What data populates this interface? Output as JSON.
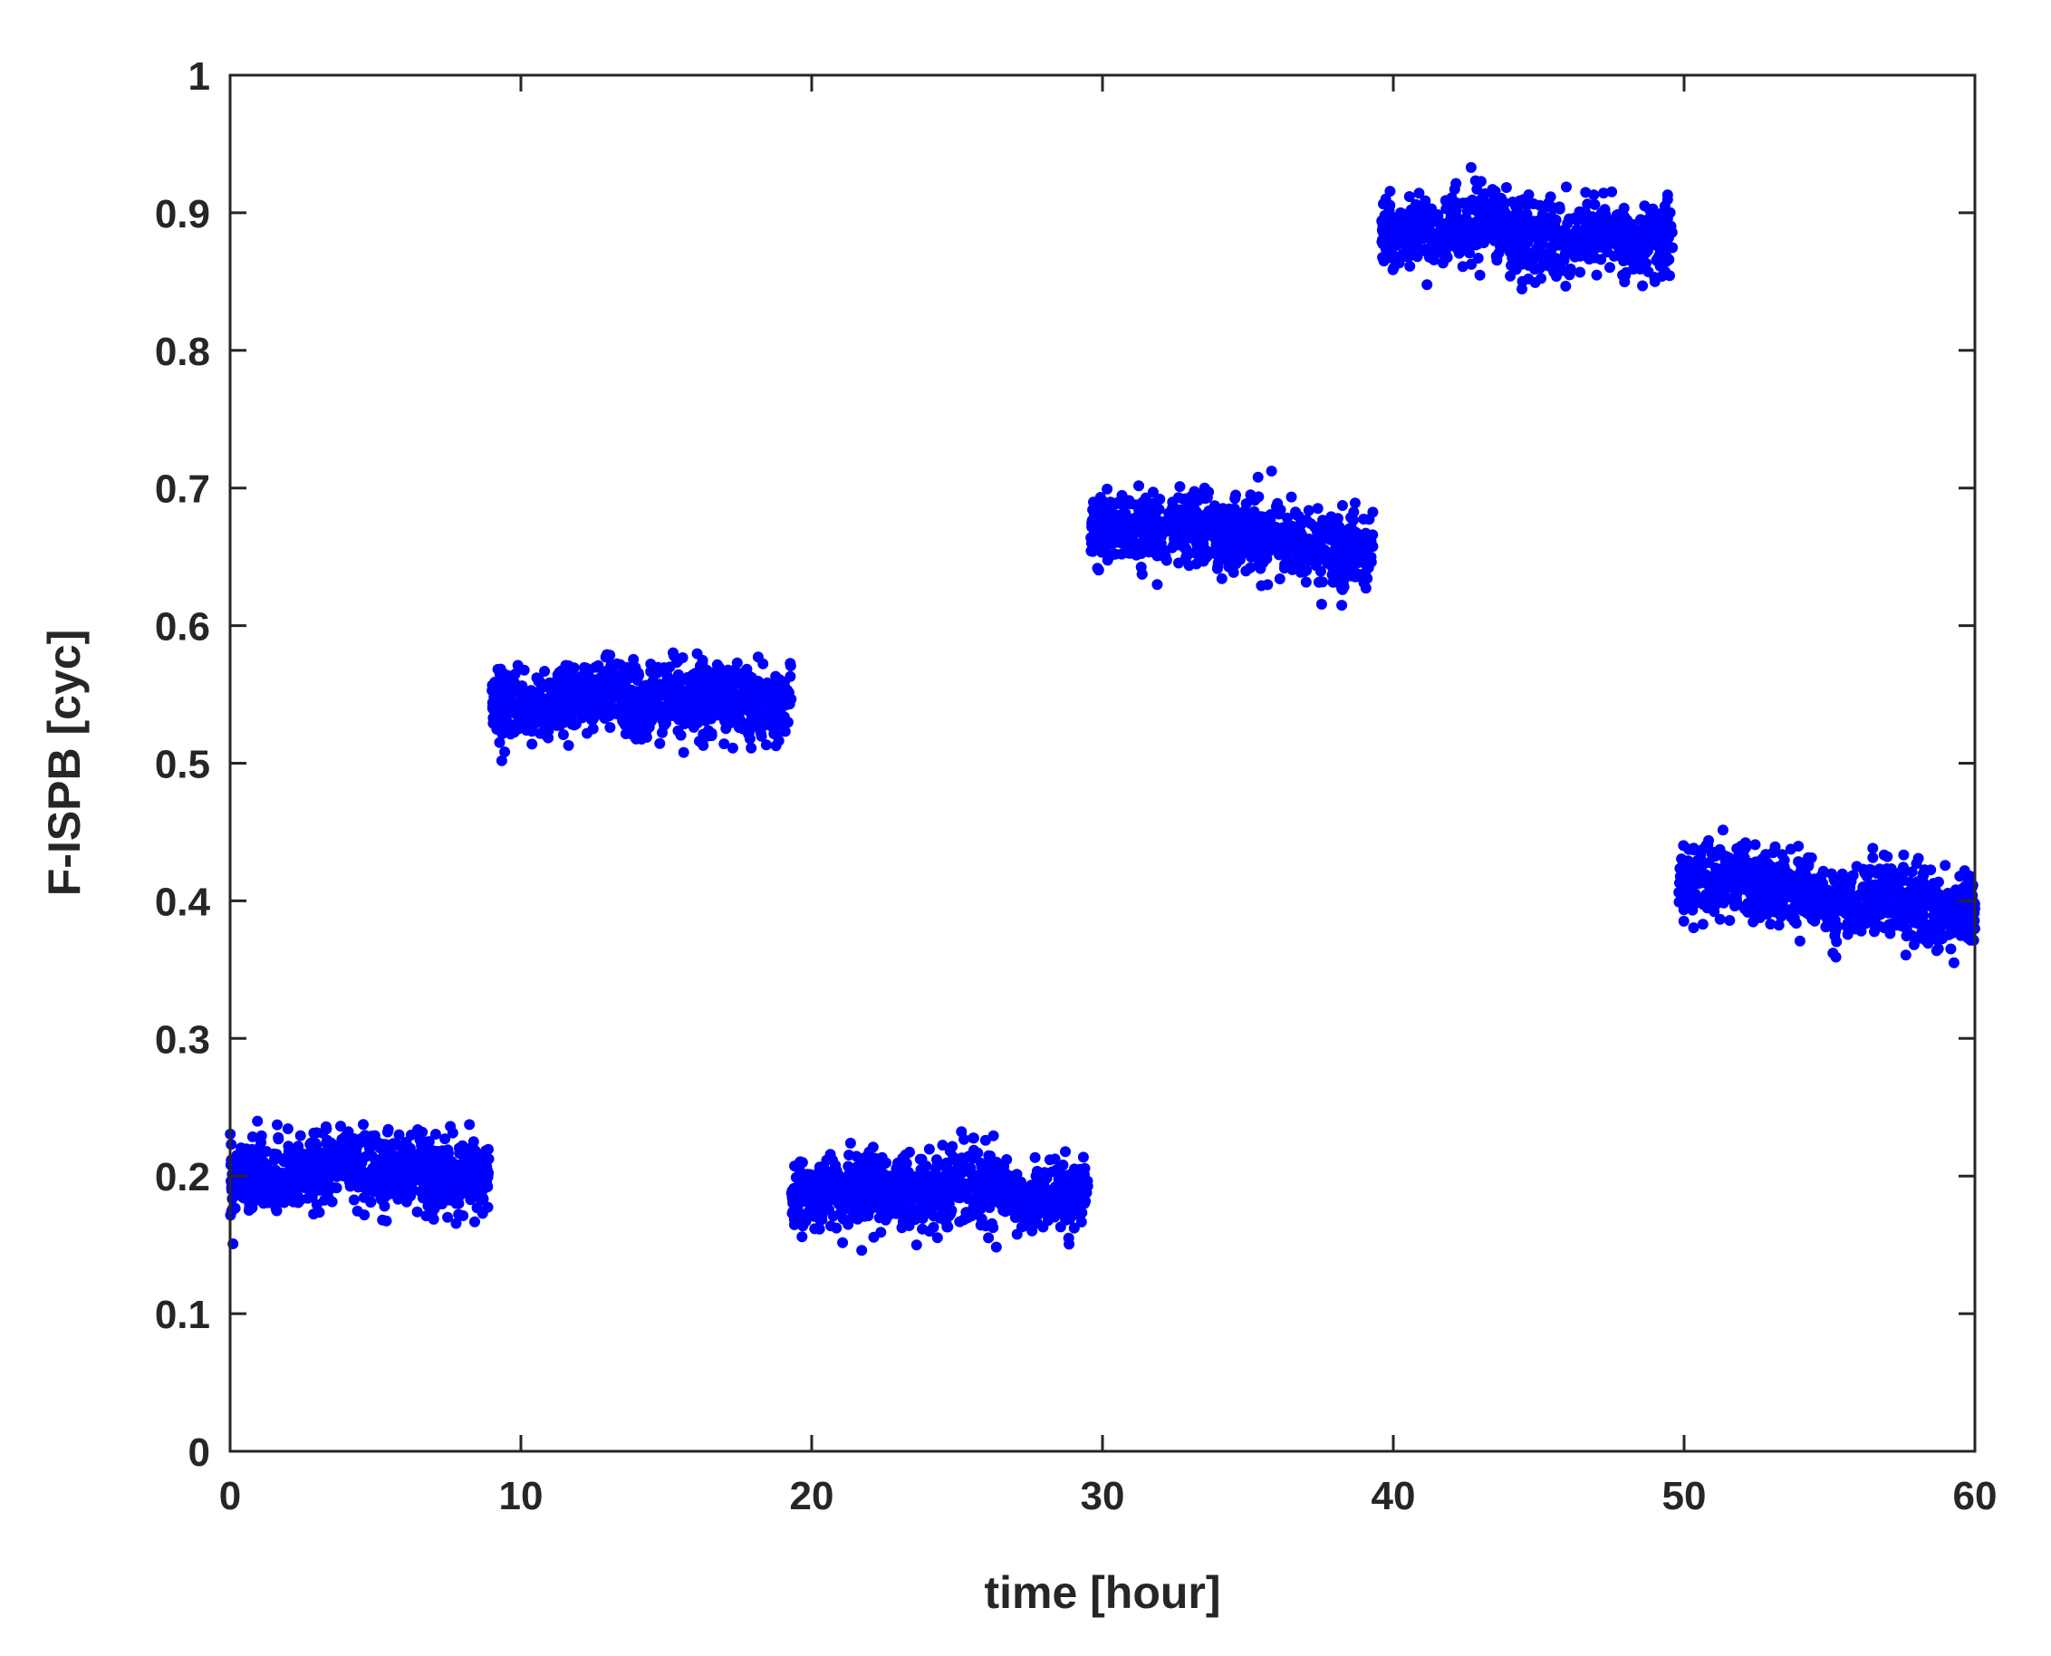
{
  "chart_data": {
    "type": "scatter",
    "xlabel": "time [hour]",
    "ylabel": "F-ISPB [cyc]",
    "xlim": [
      0,
      60
    ],
    "ylim": [
      0,
      1
    ],
    "x_ticks": [
      "0",
      "10",
      "20",
      "30",
      "40",
      "50",
      "60"
    ],
    "y_ticks": [
      "0",
      "0.1",
      "0.2",
      "0.3",
      "0.4",
      "0.5",
      "0.6",
      "0.7",
      "0.8",
      "0.9",
      "1"
    ],
    "grid": false,
    "legend": "none",
    "marker_color": "#0000ff",
    "segments": [
      {
        "x": [
          0,
          0.5,
          1,
          1.5,
          2,
          2.5,
          3,
          3.5,
          4,
          4.5,
          5,
          5.5,
          6,
          6.5,
          7,
          7.5,
          8,
          8.5,
          8.9
        ],
        "y": [
          0.195,
          0.2,
          0.2,
          0.195,
          0.2,
          0.2,
          0.205,
          0.205,
          0.21,
          0.205,
          0.205,
          0.205,
          0.205,
          0.205,
          0.2,
          0.2,
          0.2,
          0.2,
          0.205
        ]
      },
      {
        "x": [
          9,
          9.5,
          10,
          10.5,
          11,
          11.5,
          12,
          12.5,
          13,
          13.5,
          14,
          14.5,
          15,
          15.5,
          16,
          16.5,
          17,
          17.5,
          18,
          18.5,
          19.3
        ],
        "y": [
          0.545,
          0.545,
          0.54,
          0.54,
          0.545,
          0.545,
          0.545,
          0.55,
          0.55,
          0.55,
          0.545,
          0.545,
          0.545,
          0.545,
          0.55,
          0.55,
          0.545,
          0.545,
          0.545,
          0.54,
          0.545
        ]
      },
      {
        "x": [
          19.3,
          20,
          20.5,
          21,
          21.5,
          22,
          22.5,
          23,
          23.5,
          24,
          24.5,
          25,
          25.5,
          26,
          26.5,
          27,
          27.5,
          28,
          28.5,
          29,
          29.5
        ],
        "y": [
          0.19,
          0.185,
          0.19,
          0.185,
          0.19,
          0.19,
          0.19,
          0.19,
          0.19,
          0.185,
          0.19,
          0.19,
          0.195,
          0.195,
          0.19,
          0.185,
          0.185,
          0.185,
          0.185,
          0.185,
          0.19
        ]
      },
      {
        "x": [
          29.6,
          30,
          30.5,
          31,
          31.5,
          32,
          32.5,
          33,
          33.5,
          34,
          34.5,
          35,
          35.5,
          36,
          36.5,
          37,
          37.5,
          38,
          38.5,
          39.3
        ],
        "y": [
          0.67,
          0.67,
          0.67,
          0.67,
          0.67,
          0.665,
          0.67,
          0.67,
          0.67,
          0.665,
          0.665,
          0.665,
          0.66,
          0.665,
          0.66,
          0.66,
          0.655,
          0.655,
          0.655,
          0.655
        ]
      },
      {
        "x": [
          39.6,
          40,
          40.5,
          41,
          41.5,
          42,
          42.5,
          43,
          43.5,
          44,
          44.5,
          45,
          45.5,
          46,
          46.5,
          47,
          47.5,
          48,
          48.5,
          49,
          49.6
        ],
        "y": [
          0.885,
          0.885,
          0.885,
          0.89,
          0.885,
          0.89,
          0.89,
          0.89,
          0.89,
          0.885,
          0.88,
          0.88,
          0.88,
          0.88,
          0.88,
          0.885,
          0.885,
          0.88,
          0.88,
          0.88,
          0.885
        ]
      },
      {
        "x": [
          49.8,
          50.5,
          51,
          51.5,
          52,
          52.5,
          53,
          53.5,
          54,
          54.5,
          55,
          55.5,
          56,
          56.5,
          57,
          57.5,
          58,
          58.5,
          59,
          59.5,
          60
        ],
        "y": [
          0.41,
          0.415,
          0.415,
          0.415,
          0.42,
          0.415,
          0.41,
          0.41,
          0.405,
          0.4,
          0.395,
          0.395,
          0.4,
          0.405,
          0.4,
          0.4,
          0.395,
          0.395,
          0.39,
          0.395,
          0.395
        ]
      }
    ],
    "spread": 0.013
  }
}
